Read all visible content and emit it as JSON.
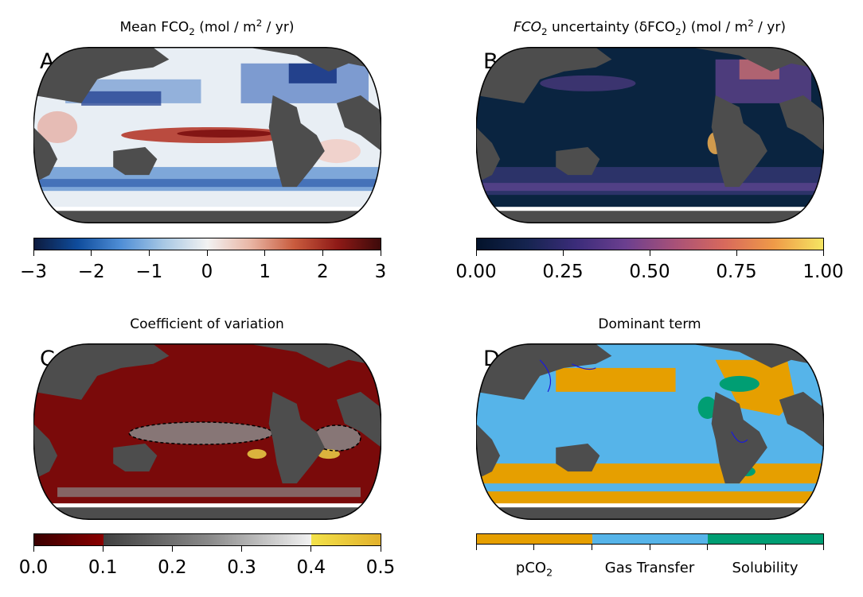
{
  "panels": [
    {
      "letter": "A",
      "title_main": "Mean FCO",
      "title_sub": "2",
      "title_rest": " (mol / m",
      "title_sup": "2",
      "title_end": " / yr)"
    },
    {
      "letter": "B",
      "title_main": "FCO",
      "title_sub": "2",
      "title_rest": " uncertainty (δFCO",
      "title_sub2": "2",
      "title_end": ") (mol / m",
      "title_sup": "2",
      "title_end2": " / yr)"
    },
    {
      "letter": "C",
      "title": "Coefficient of variation"
    },
    {
      "letter": "D",
      "title": "Dominant term"
    }
  ],
  "colorbars": {
    "a": {
      "ticks": [
        "−3",
        "−2",
        "−1",
        "0",
        "1",
        "2",
        "3"
      ],
      "range": [
        -3,
        3
      ]
    },
    "b": {
      "ticks": [
        "0.00",
        "0.25",
        "0.50",
        "0.75",
        "1.00"
      ],
      "range": [
        0,
        1
      ]
    },
    "c": {
      "ticks": [
        "0.0",
        "0.1",
        "0.2",
        "0.3",
        "0.4",
        "0.5"
      ],
      "range": [
        0,
        0.5
      ]
    },
    "d": {
      "categories": [
        {
          "label": "pCO",
          "sub": "2",
          "color": "#e69f00"
        },
        {
          "label": "Gas Transfer",
          "color": "#56b4e9"
        },
        {
          "label": "Solubility",
          "color": "#009e73"
        }
      ]
    }
  },
  "colors": {
    "land": "#4d4d4d",
    "ocean_a_bg": "#e6eef5",
    "ocean_b_bg": "#0c2a48",
    "ocean_c_bg": "#7a0a0a",
    "ocean_d_bg": "#56b4e9"
  }
}
